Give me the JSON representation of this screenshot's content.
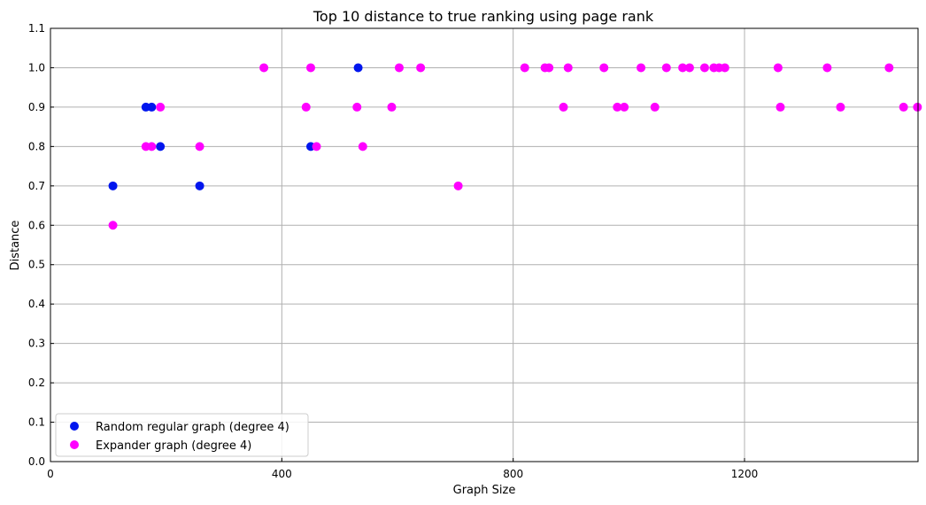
{
  "chart_data": {
    "type": "scatter",
    "title": "Top 10 distance to true ranking using page rank",
    "xlabel": "Graph Size",
    "ylabel": "Distance",
    "xlim": [
      0,
      1500
    ],
    "ylim": [
      0.0,
      1.1
    ],
    "xticks": [
      0,
      400,
      800,
      1200
    ],
    "yticks": [
      0.0,
      0.1,
      0.2,
      0.3,
      0.4,
      0.5,
      0.6,
      0.7,
      0.8,
      0.9,
      1.0,
      1.1
    ],
    "grid": true,
    "legend_position": "lower-left",
    "series": [
      {
        "name": "Random regular graph (degree 4)",
        "color": "#0016ee",
        "points": [
          [
            108,
            0.7
          ],
          [
            165,
            0.9
          ],
          [
            175,
            0.9
          ],
          [
            190,
            0.8
          ],
          [
            258,
            0.7
          ],
          [
            450,
            0.8
          ],
          [
            532,
            1.0
          ]
        ]
      },
      {
        "name": "Expander graph (degree 4)",
        "color": "#ff00ff",
        "points": [
          [
            108,
            0.6
          ],
          [
            165,
            0.8
          ],
          [
            175,
            0.8
          ],
          [
            190,
            0.9
          ],
          [
            258,
            0.8
          ],
          [
            369,
            1.0
          ],
          [
            442,
            0.9
          ],
          [
            450,
            1.0
          ],
          [
            460,
            0.8
          ],
          [
            530,
            0.9
          ],
          [
            540,
            0.8
          ],
          [
            590,
            0.9
          ],
          [
            603,
            1.0
          ],
          [
            640,
            1.0
          ],
          [
            705,
            0.7
          ],
          [
            820,
            1.0
          ],
          [
            855,
            1.0
          ],
          [
            862,
            1.0
          ],
          [
            887,
            0.9
          ],
          [
            895,
            1.0
          ],
          [
            957,
            1.0
          ],
          [
            980,
            0.9
          ],
          [
            992,
            0.9
          ],
          [
            1021,
            1.0
          ],
          [
            1045,
            0.9
          ],
          [
            1065,
            1.0
          ],
          [
            1093,
            1.0
          ],
          [
            1105,
            1.0
          ],
          [
            1131,
            1.0
          ],
          [
            1147,
            1.0
          ],
          [
            1156,
            1.0
          ],
          [
            1166,
            1.0
          ],
          [
            1258,
            1.0
          ],
          [
            1262,
            0.9
          ],
          [
            1343,
            1.0
          ],
          [
            1366,
            0.9
          ],
          [
            1450,
            1.0
          ],
          [
            1475,
            0.9
          ],
          [
            1499,
            0.9
          ]
        ]
      }
    ]
  }
}
